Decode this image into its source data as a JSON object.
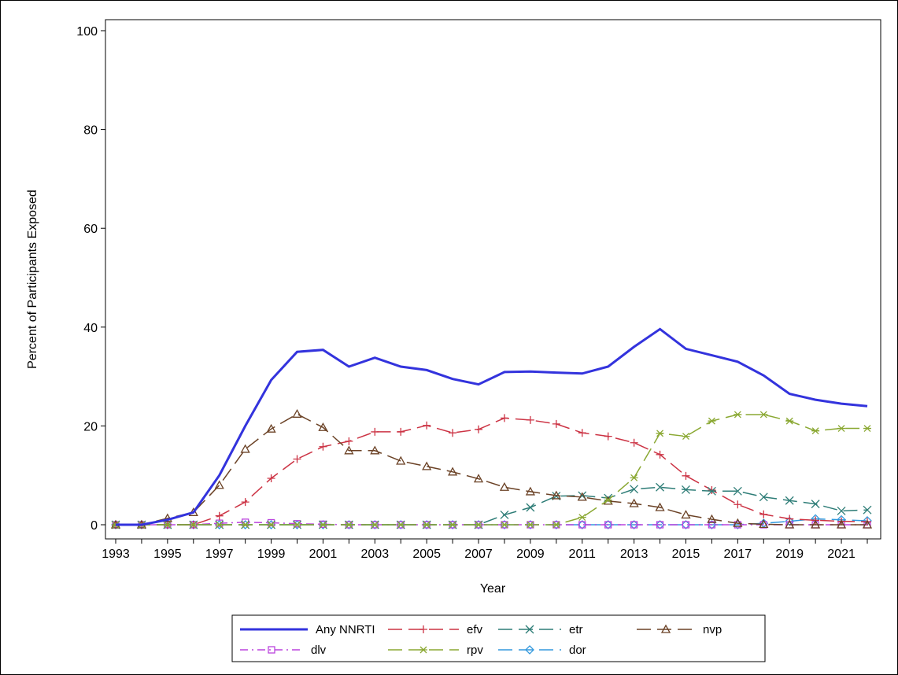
{
  "chart_data": {
    "type": "line",
    "title": "",
    "xlabel": "Year",
    "ylabel": "Percent of Participants Exposed",
    "xlim": [
      1993,
      2022
    ],
    "ylim": [
      0,
      100
    ],
    "xticks": [
      "1993",
      "1995",
      "1997",
      "1999",
      "2001",
      "2003",
      "2005",
      "2007",
      "2009",
      "2011",
      "2013",
      "2015",
      "2017",
      "2019",
      "2021"
    ],
    "yticks": [
      "0",
      "20",
      "40",
      "60",
      "80",
      "100"
    ],
    "legend_position": "bottom",
    "grid": false,
    "x": [
      1993,
      1994,
      1995,
      1996,
      1997,
      1998,
      1999,
      2000,
      2001,
      2002,
      2003,
      2004,
      2005,
      2006,
      2007,
      2008,
      2009,
      2010,
      2011,
      2012,
      2013,
      2014,
      2015,
      2016,
      2017,
      2018,
      2019,
      2020,
      2021,
      2022
    ],
    "series": [
      {
        "name": "Any NNRTI",
        "color": "#3333dd",
        "marker": "none",
        "dash": "solid",
        "values": [
          0,
          0,
          1,
          2.5,
          10,
          20,
          29.3,
          35,
          35.4,
          32,
          33.8,
          32,
          31.3,
          29.5,
          28.4,
          30.9,
          31,
          30.8,
          30.6,
          32,
          36,
          39.6,
          35.6,
          34.3,
          33,
          30.2,
          26.5,
          25.3,
          24.5,
          24
        ]
      },
      {
        "name": "efv",
        "color": "#cc3344",
        "marker": "plus",
        "dash": "long-dash",
        "values": [
          0,
          0,
          0,
          0,
          1.8,
          4.6,
          9.4,
          13.3,
          15.8,
          16.9,
          18.8,
          18.8,
          20.1,
          18.6,
          19.3,
          21.6,
          21.2,
          20.4,
          18.6,
          17.9,
          16.6,
          14.2,
          9.9,
          7,
          4.1,
          2.1,
          1.2,
          0.9,
          0.7,
          0.6
        ]
      },
      {
        "name": "etr",
        "color": "#2e7d77",
        "marker": "x",
        "dash": "long-dash",
        "values": [
          0,
          0,
          0,
          0,
          0,
          0,
          0,
          0,
          0,
          0,
          0,
          0,
          0,
          0,
          0,
          2,
          3.5,
          5.8,
          5.9,
          5.4,
          7.2,
          7.6,
          7.1,
          6.8,
          6.8,
          5.6,
          4.9,
          4.2,
          2.8,
          3
        ]
      },
      {
        "name": "nvp",
        "color": "#6b4226",
        "marker": "triangle",
        "dash": "long-dash",
        "values": [
          0,
          0,
          1.3,
          2.5,
          8,
          15.3,
          19.4,
          22.4,
          19.7,
          15,
          15,
          12.9,
          11.8,
          10.7,
          9.3,
          7.6,
          6.7,
          5.9,
          5.6,
          4.8,
          4.3,
          3.5,
          2,
          1.1,
          0.3,
          0.1,
          0,
          0,
          0,
          0
        ]
      },
      {
        "name": "dlv",
        "color": "#bb44dd",
        "marker": "square",
        "dash": "dash-dot",
        "values": [
          0,
          0,
          0,
          0,
          0.3,
          0.5,
          0.4,
          0.2,
          0.1,
          0,
          0,
          0,
          0,
          0,
          0,
          0,
          0,
          0,
          0,
          0,
          0,
          0,
          0,
          0,
          0,
          0,
          0,
          0,
          0,
          0
        ]
      },
      {
        "name": "rpv",
        "color": "#8aa832",
        "marker": "star",
        "dash": "long-dash",
        "values": [
          0,
          0,
          0,
          0,
          0,
          0,
          0,
          0,
          0,
          0,
          0,
          0,
          0,
          0,
          0,
          0,
          0,
          0,
          1.5,
          5,
          9.5,
          18.5,
          17.9,
          21,
          22.3,
          22.3,
          21,
          19,
          19.5,
          19.5
        ]
      },
      {
        "name": "dor",
        "color": "#3399dd",
        "marker": "diamond",
        "dash": "long-dash",
        "values": [
          0,
          0,
          0,
          0,
          0,
          0,
          0,
          0,
          0,
          0,
          0,
          0,
          0,
          0,
          0,
          0,
          0,
          0,
          0,
          0,
          0,
          0,
          0,
          0,
          0,
          0.3,
          0.7,
          1.2,
          1,
          0.8
        ]
      }
    ]
  }
}
